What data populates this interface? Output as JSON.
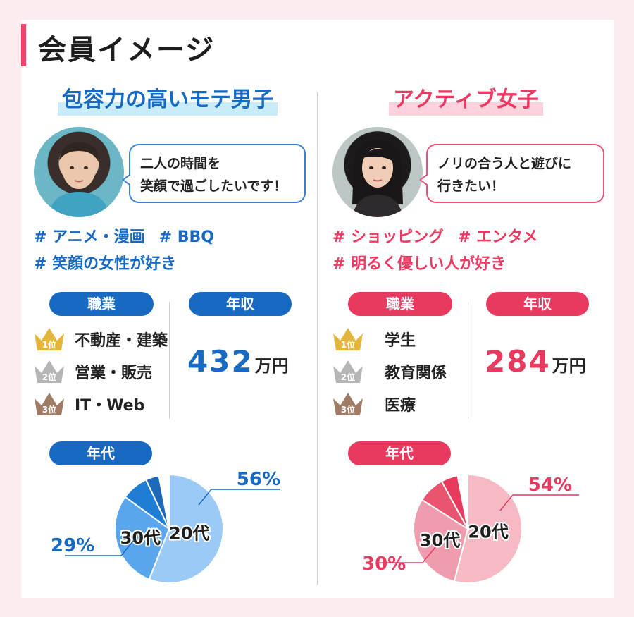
{
  "page_title": "会員イメージ",
  "colors": {
    "accent": "#ee4668",
    "male": "#1769c2",
    "female": "#e8395e"
  },
  "male": {
    "title": "包容力の高いモテ男子",
    "bubble": [
      "二人の時間を",
      "笑顔で過ごしたいです！"
    ],
    "tags": [
      "# アニメ・漫画",
      "# BBQ",
      "# 笑顔の女性が好き"
    ],
    "job_label": "職業",
    "income_label": "年収",
    "age_label": "年代",
    "jobs": [
      {
        "rank": "1位",
        "label": "不動産・建築",
        "crown_color": "#e3b53c"
      },
      {
        "rank": "2位",
        "label": "営業・販売",
        "crown_color": "#b5b5b5"
      },
      {
        "rank": "3位",
        "label": "IT・Web",
        "crown_color": "#a07c66"
      }
    ],
    "income_value": "432",
    "income_unit": "万円",
    "pie": {
      "slices": [
        {
          "label": "20代",
          "value": 56,
          "color": "#9ccaf7"
        },
        {
          "label": "30代",
          "value": 29,
          "color": "#5aa6ec"
        },
        {
          "label": "",
          "value": 8,
          "color": "#1f7dd3"
        },
        {
          "label": "",
          "value": 4,
          "color": "#1f6ab8"
        },
        {
          "label": "",
          "value": 3,
          "color": "#ffffff"
        }
      ],
      "callout_major": "56%",
      "callout_minor": "29%"
    }
  },
  "female": {
    "title": "アクティブ女子",
    "bubble": [
      "ノリの合う人と遊びに",
      "行きたい！"
    ],
    "tags": [
      "# ショッピング",
      "# エンタメ",
      "# 明るく優しい人が好き"
    ],
    "job_label": "職業",
    "income_label": "年収",
    "age_label": "年代",
    "jobs": [
      {
        "rank": "1位",
        "label": "学生",
        "crown_color": "#e3b53c"
      },
      {
        "rank": "2位",
        "label": "教育関係",
        "crown_color": "#b5b5b5"
      },
      {
        "rank": "3位",
        "label": "医療",
        "crown_color": "#a07c66"
      }
    ],
    "income_value": "284",
    "income_unit": "万円",
    "pie": {
      "slices": [
        {
          "label": "20代",
          "value": 54,
          "color": "#f7b9c4"
        },
        {
          "label": "30代",
          "value": 30,
          "color": "#ee9cae"
        },
        {
          "label": "",
          "value": 8,
          "color": "#e9556f"
        },
        {
          "label": "",
          "value": 5,
          "color": "#e83a5d"
        },
        {
          "label": "",
          "value": 3,
          "color": "#ffffff"
        }
      ],
      "callout_major": "54%",
      "callout_minor": "30%"
    }
  }
}
